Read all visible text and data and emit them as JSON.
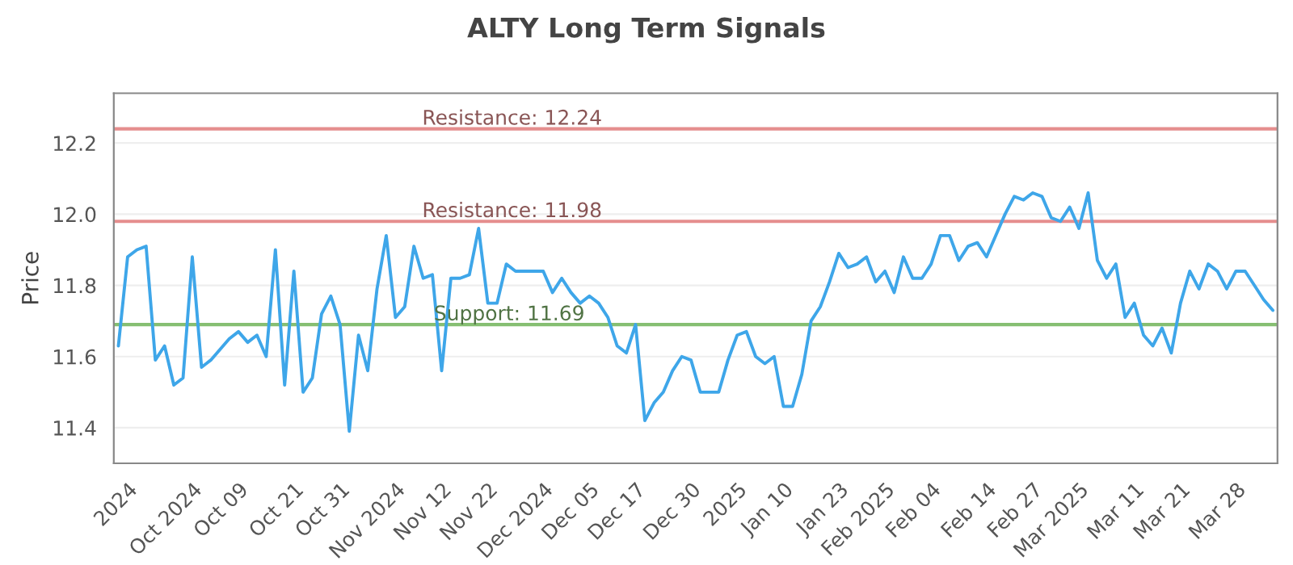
{
  "chart_data": {
    "type": "line",
    "title": "ALTY Long Term Signals",
    "ylabel": "Price",
    "categories": [
      null,
      "2024",
      null,
      null,
      null,
      null,
      null,
      null,
      "Oct 2024",
      null,
      null,
      null,
      null,
      "Oct 09",
      null,
      null,
      null,
      null,
      null,
      "Oct 21",
      null,
      null,
      null,
      null,
      "Oct 31",
      null,
      null,
      null,
      null,
      null,
      "Nov 2024",
      null,
      null,
      null,
      null,
      "Nov 12",
      null,
      null,
      null,
      null,
      "Nov 22",
      null,
      null,
      null,
      null,
      null,
      "Dec 2024",
      null,
      null,
      null,
      null,
      "Dec 05",
      null,
      null,
      null,
      null,
      "Dec 17",
      null,
      null,
      null,
      null,
      null,
      "Dec 30",
      null,
      null,
      null,
      null,
      "2025",
      null,
      null,
      null,
      null,
      "Jan 10",
      null,
      null,
      null,
      null,
      null,
      "Jan 23",
      null,
      null,
      null,
      null,
      "Feb 2025",
      null,
      null,
      null,
      null,
      "Feb 04",
      null,
      null,
      null,
      null,
      null,
      "Feb 14",
      null,
      null,
      null,
      null,
      "Feb 27",
      null,
      null,
      null,
      null,
      "Mar 2025",
      null,
      null,
      null,
      null,
      null,
      "Mar 11",
      null,
      null,
      null,
      null,
      "Mar 21",
      null,
      null,
      null,
      null,
      null,
      "Mar 28",
      null,
      null,
      null,
      null
    ],
    "series": [
      {
        "color": "#3ea6e9",
        "values": [
          11.63,
          11.88,
          11.9,
          11.91,
          11.59,
          11.63,
          11.52,
          11.54,
          11.88,
          11.57,
          11.59,
          11.62,
          11.65,
          11.67,
          11.64,
          11.66,
          11.6,
          11.9,
          11.52,
          11.84,
          11.5,
          11.54,
          11.72,
          11.77,
          11.69,
          11.39,
          11.66,
          11.56,
          11.79,
          11.94,
          11.71,
          11.74,
          11.91,
          11.82,
          11.83,
          11.56,
          11.82,
          11.82,
          11.83,
          11.96,
          11.75,
          11.75,
          11.86,
          11.84,
          11.84,
          11.84,
          11.84,
          11.78,
          11.82,
          11.78,
          11.75,
          11.77,
          11.75,
          11.71,
          11.63,
          11.61,
          11.69,
          11.42,
          11.47,
          11.5,
          11.56,
          11.6,
          11.59,
          11.5,
          11.5,
          11.5,
          11.59,
          11.66,
          11.67,
          11.6,
          11.58,
          11.6,
          11.46,
          11.46,
          11.55,
          11.7,
          11.74,
          11.81,
          11.89,
          11.85,
          11.86,
          11.88,
          11.81,
          11.84,
          11.78,
          11.88,
          11.82,
          11.82,
          11.86,
          11.94,
          11.94,
          11.87,
          11.91,
          11.92,
          11.88,
          11.94,
          12.0,
          12.05,
          12.04,
          12.06,
          12.05,
          11.99,
          11.98,
          12.02,
          11.96,
          12.06,
          11.87,
          11.82,
          11.86,
          11.71,
          11.75,
          11.66,
          11.63,
          11.68,
          11.61,
          11.75,
          11.84,
          11.79,
          11.86,
          11.84,
          11.79,
          11.84,
          11.84,
          11.8,
          11.76,
          11.73
        ]
      }
    ],
    "ylim": [
      11.3,
      12.34
    ],
    "yticks": [
      11.4,
      11.6,
      11.8,
      {
        "value": 12.0,
        "label": "12.0"
      },
      12.2
    ],
    "grid": "y",
    "ref_lines": [
      {
        "axis": "y",
        "value": 12.24,
        "label": "Resistance: 12.24",
        "color": "#e58e8e"
      },
      {
        "axis": "y",
        "value": 11.98,
        "label": "Resistance: 11.98",
        "color": "#e58e8e"
      },
      {
        "axis": "y",
        "value": 11.69,
        "label": "Support: 11.69",
        "color": "#86bf72"
      }
    ]
  }
}
